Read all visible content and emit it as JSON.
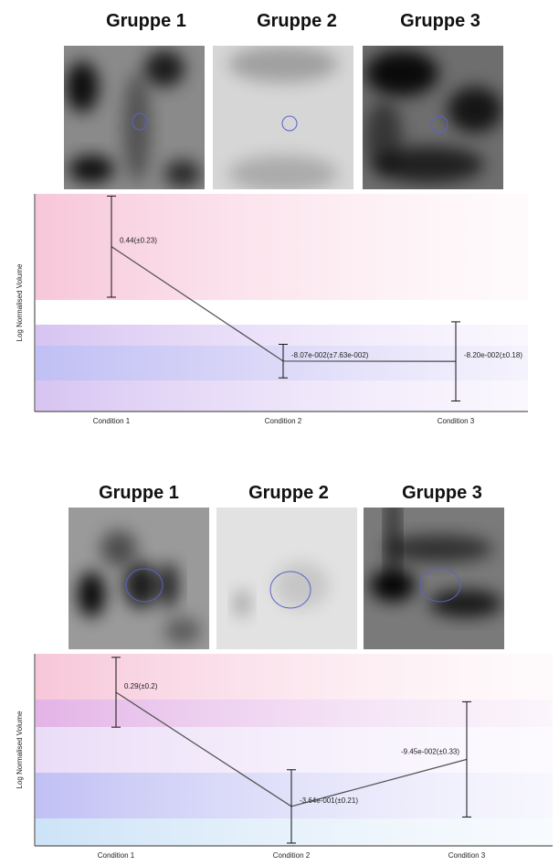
{
  "chart_data": [
    {
      "type": "line",
      "image_labels": [
        "Gruppe 1",
        "Gruppe 2",
        "Gruppe 3"
      ],
      "ylabel": "Log Normalised Volume",
      "categories": [
        "Condition 1",
        "Condition 2",
        "Condition 3"
      ],
      "ylim": [
        -0.31,
        0.68
      ],
      "series": [
        {
          "color": "#555555",
          "values": [
            0.44,
            -0.0807,
            -0.082
          ],
          "errors": [
            0.23,
            0.0763,
            0.18
          ],
          "value_labels": [
            "0.44(±0.23)",
            "-8.07e-002(±7.63e-002)",
            "-8.20e-002(±0.18)"
          ]
        }
      ]
    },
    {
      "type": "line",
      "image_labels": [
        "Gruppe 1",
        "Gruppe 2",
        "Gruppe 3"
      ],
      "ylabel": "Log Normalised Volume",
      "categories": [
        "Condition 1",
        "Condition 2",
        "Condition 3"
      ],
      "ylim": [
        -0.59,
        0.51
      ],
      "series": [
        {
          "color": "#555555",
          "values": [
            0.29,
            -0.364,
            -0.0945
          ],
          "errors": [
            0.2,
            0.21,
            0.33
          ],
          "value_labels": [
            "0.29(±0.2)",
            "-3.64e-001(±0.21)",
            "-9.45e-002(±0.33)"
          ]
        }
      ]
    }
  ]
}
